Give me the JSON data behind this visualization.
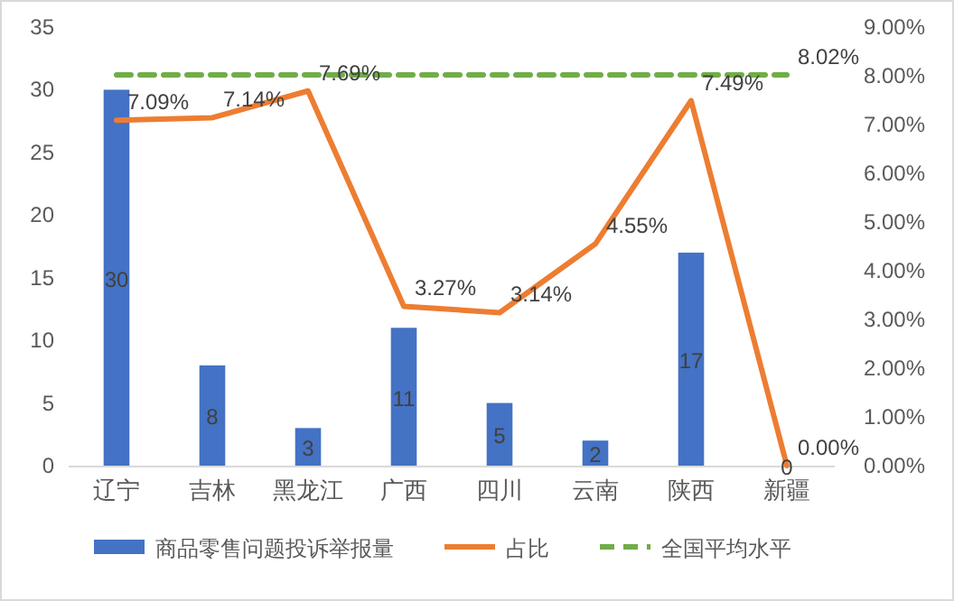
{
  "chart_data": {
    "type": "bar",
    "categories": [
      "辽宁",
      "吉林",
      "黑龙江",
      "广西",
      "四川",
      "云南",
      "陕西",
      "新疆"
    ],
    "series": [
      {
        "name": "商品零售问题投诉举报量",
        "color": "#4472c4",
        "values": [
          30,
          8,
          3,
          11,
          5,
          2,
          17,
          0
        ],
        "value_labels": [
          "30",
          "8",
          "3",
          "11",
          "5",
          "2",
          "17",
          "0"
        ]
      },
      {
        "name": "占比",
        "type": "line",
        "axis": "y2",
        "color": "#ed7d31",
        "line_style": "solid",
        "values": [
          7.09,
          7.14,
          7.69,
          3.27,
          3.14,
          4.55,
          7.49,
          0.0
        ],
        "value_labels": [
          "7.09%",
          "7.14%",
          "7.69%",
          "3.27%",
          "3.14%",
          "4.55%",
          "7.49%",
          "0.00%"
        ]
      },
      {
        "name": "全国平均水平",
        "type": "line",
        "axis": "y2",
        "color": "#70ad47",
        "line_style": "dashed",
        "values": [
          8.02,
          8.02,
          8.02,
          8.02,
          8.02,
          8.02,
          8.02,
          8.02
        ],
        "value_labels": [
          null,
          null,
          null,
          null,
          null,
          null,
          null,
          "8.02%"
        ]
      }
    ],
    "ylim": [
      0,
      35
    ],
    "yticks": [
      0,
      5,
      10,
      15,
      20,
      25,
      30,
      35
    ],
    "y2lim": [
      0,
      9
    ],
    "y2ticks": [
      {
        "value": 0,
        "label": "0.00%"
      },
      {
        "value": 1,
        "label": "1.00%"
      },
      {
        "value": 2,
        "label": "2.00%"
      },
      {
        "value": 3,
        "label": "3.00%"
      },
      {
        "value": 4,
        "label": "4.00%"
      },
      {
        "value": 5,
        "label": "5.00%"
      },
      {
        "value": 6,
        "label": "6.00%"
      },
      {
        "value": 7,
        "label": "7.00%"
      },
      {
        "value": 8,
        "label": "8.00%"
      },
      {
        "value": 9,
        "label": "9.00%"
      }
    ],
    "legend": "bottom",
    "grid": false
  }
}
